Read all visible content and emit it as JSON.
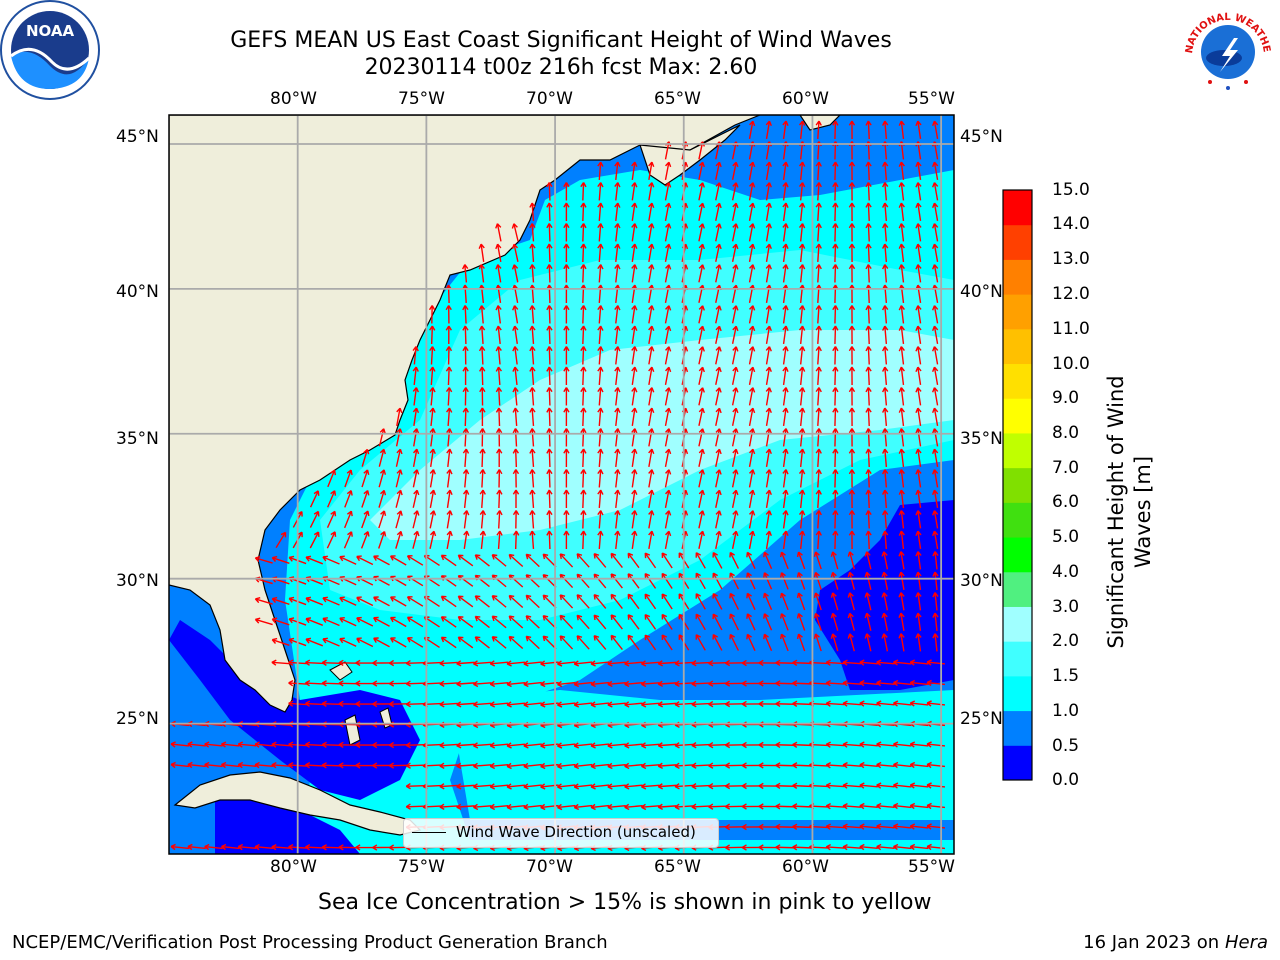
{
  "title_line1": "GEFS MEAN US East Coast Significant Height of Wind Waves",
  "title_line2": "20230114 t00z 216h fcst   Max: 2.60",
  "map": {
    "lon_ticks": [
      "80°W",
      "75°W",
      "70°W",
      "65°W",
      "60°W",
      "55°W"
    ],
    "lat_ticks": [
      "45°N",
      "40°N",
      "35°N",
      "30°N",
      "25°N"
    ],
    "lon_values": [
      -80,
      -75,
      -70,
      -65,
      -60,
      -55
    ],
    "lat_values": [
      45,
      40,
      35,
      30,
      25
    ],
    "lon_range": [
      -85,
      -54.5
    ],
    "lat_range": [
      20.5,
      46
    ],
    "land_color": "#efeedb",
    "arrow_color": "#ff0000"
  },
  "legend": {
    "label": "Wind Wave Direction (unscaled)"
  },
  "colorbar": {
    "label": "Significant Height of Wind Waves [m]",
    "ticks": [
      "0.0",
      "0.5",
      "1.0",
      "1.5",
      "2.0",
      "3.0",
      "4.0",
      "5.0",
      "6.0",
      "7.0",
      "8.0",
      "9.0",
      "10.0",
      "11.0",
      "12.0",
      "13.0",
      "14.0",
      "15.0"
    ],
    "colors": [
      "#0000ff",
      "#0080ff",
      "#00ffff",
      "#40ffff",
      "#a0ffff",
      "#50f080",
      "#00ff00",
      "#40e010",
      "#80e000",
      "#c0ff00",
      "#ffff00",
      "#ffe000",
      "#ffc000",
      "#ffa000",
      "#ff8000",
      "#ff4000",
      "#ff0000"
    ]
  },
  "note": "Sea Ice Concentration > 15% is shown in pink to yellow",
  "footer": {
    "left": "NCEP/EMC/Verification Post Processing Product Generation Branch",
    "date": "16 Jan 2023 on",
    "host": "Hera"
  },
  "logos": {
    "noaa_text": "NOAA",
    "nws_text": "NATIONAL WEATHER SERVICE"
  }
}
